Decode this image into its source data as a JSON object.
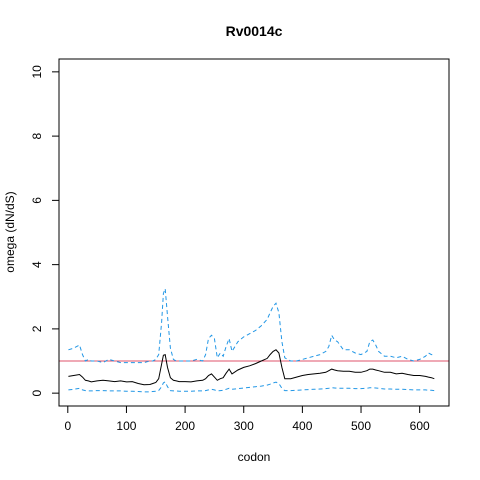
{
  "chart_data": {
    "type": "line",
    "title": "Rv0014c",
    "xlabel": "codon",
    "ylabel": "omega (dN/dS)",
    "xlim": [
      -15,
      650
    ],
    "ylim": [
      -0.4,
      10.4
    ],
    "x_ticks": [
      0,
      100,
      200,
      300,
      400,
      500,
      600
    ],
    "y_ticks": [
      0,
      2,
      4,
      6,
      8,
      10
    ],
    "grid": false,
    "reference_line": {
      "y": 1,
      "color": "#df536b"
    },
    "colors": {
      "mean": "#000000",
      "bounds": "#2297e6",
      "reference": "#df536b"
    },
    "series": [
      {
        "role": "upper",
        "style": "dashed",
        "x": [
          1,
          10,
          20,
          25,
          30,
          35,
          40,
          50,
          60,
          70,
          80,
          90,
          100,
          110,
          120,
          130,
          140,
          145,
          150,
          155,
          160,
          163,
          166,
          170,
          175,
          180,
          185,
          190,
          200,
          210,
          220,
          230,
          235,
          240,
          245,
          250,
          255,
          260,
          265,
          270,
          275,
          280,
          290,
          300,
          310,
          320,
          330,
          340,
          345,
          350,
          355,
          360,
          365,
          370,
          380,
          390,
          400,
          410,
          420,
          430,
          440,
          445,
          450,
          455,
          460,
          470,
          480,
          490,
          500,
          510,
          515,
          520,
          525,
          530,
          540,
          550,
          560,
          570,
          580,
          590,
          600,
          610,
          615,
          620,
          625
        ],
        "y": [
          1.35,
          1.4,
          1.5,
          1.2,
          1.0,
          1.05,
          1.0,
          1.0,
          0.95,
          1.05,
          1.0,
          0.95,
          0.95,
          0.95,
          0.95,
          0.95,
          1.0,
          1.0,
          1.05,
          1.2,
          2.2,
          3.1,
          3.25,
          2.4,
          1.4,
          1.05,
          1.0,
          1.0,
          1.0,
          1.0,
          1.05,
          1.0,
          1.2,
          1.7,
          1.8,
          1.7,
          1.1,
          1.25,
          1.15,
          1.45,
          1.7,
          1.3,
          1.6,
          1.75,
          1.85,
          1.95,
          2.1,
          2.3,
          2.5,
          2.7,
          2.8,
          2.5,
          1.6,
          1.1,
          1.0,
          1.0,
          1.05,
          1.1,
          1.15,
          1.2,
          1.3,
          1.45,
          1.8,
          1.65,
          1.6,
          1.35,
          1.35,
          1.25,
          1.2,
          1.3,
          1.6,
          1.65,
          1.5,
          1.3,
          1.15,
          1.15,
          1.1,
          1.15,
          1.05,
          1.0,
          1.05,
          1.15,
          1.25,
          1.2,
          1.2
        ]
      },
      {
        "role": "mean",
        "style": "solid",
        "x": [
          1,
          10,
          20,
          25,
          30,
          35,
          40,
          50,
          60,
          70,
          80,
          90,
          100,
          110,
          120,
          130,
          140,
          145,
          150,
          155,
          160,
          163,
          166,
          170,
          175,
          180,
          185,
          190,
          200,
          210,
          220,
          230,
          235,
          240,
          245,
          250,
          255,
          260,
          265,
          270,
          275,
          280,
          290,
          300,
          310,
          320,
          330,
          340,
          345,
          350,
          355,
          360,
          365,
          370,
          380,
          390,
          400,
          410,
          420,
          430,
          440,
          445,
          450,
          455,
          460,
          470,
          480,
          490,
          500,
          510,
          515,
          520,
          525,
          530,
          540,
          550,
          560,
          570,
          580,
          590,
          600,
          610,
          615,
          620,
          625
        ],
        "y": [
          0.52,
          0.55,
          0.58,
          0.5,
          0.4,
          0.38,
          0.35,
          0.38,
          0.4,
          0.38,
          0.36,
          0.38,
          0.35,
          0.36,
          0.3,
          0.26,
          0.27,
          0.3,
          0.33,
          0.45,
          0.9,
          1.18,
          1.2,
          0.8,
          0.48,
          0.4,
          0.38,
          0.36,
          0.36,
          0.35,
          0.38,
          0.4,
          0.45,
          0.55,
          0.6,
          0.5,
          0.4,
          0.45,
          0.48,
          0.62,
          0.75,
          0.6,
          0.72,
          0.8,
          0.85,
          0.92,
          1.0,
          1.08,
          1.2,
          1.3,
          1.35,
          1.25,
          0.8,
          0.45,
          0.45,
          0.5,
          0.55,
          0.58,
          0.6,
          0.62,
          0.65,
          0.7,
          0.75,
          0.72,
          0.7,
          0.68,
          0.68,
          0.65,
          0.65,
          0.7,
          0.75,
          0.75,
          0.72,
          0.7,
          0.65,
          0.65,
          0.6,
          0.62,
          0.58,
          0.55,
          0.55,
          0.52,
          0.5,
          0.48,
          0.45
        ]
      },
      {
        "role": "lower",
        "style": "dashed",
        "x": [
          1,
          10,
          20,
          25,
          30,
          35,
          40,
          50,
          60,
          70,
          80,
          90,
          100,
          110,
          120,
          130,
          140,
          145,
          150,
          155,
          160,
          163,
          166,
          170,
          175,
          180,
          185,
          190,
          200,
          210,
          220,
          230,
          235,
          240,
          245,
          250,
          255,
          260,
          265,
          270,
          275,
          280,
          290,
          300,
          310,
          320,
          330,
          340,
          345,
          350,
          355,
          360,
          365,
          370,
          380,
          390,
          400,
          410,
          420,
          430,
          440,
          445,
          450,
          455,
          460,
          470,
          480,
          490,
          500,
          510,
          515,
          520,
          525,
          530,
          540,
          550,
          560,
          570,
          580,
          590,
          600,
          610,
          615,
          620,
          625
        ],
        "y": [
          0.1,
          0.12,
          0.15,
          0.1,
          0.08,
          0.07,
          0.07,
          0.08,
          0.08,
          0.07,
          0.07,
          0.07,
          0.06,
          0.06,
          0.05,
          0.04,
          0.04,
          0.05,
          0.06,
          0.08,
          0.2,
          0.32,
          0.35,
          0.2,
          0.08,
          0.07,
          0.07,
          0.06,
          0.06,
          0.06,
          0.07,
          0.07,
          0.08,
          0.1,
          0.12,
          0.1,
          0.07,
          0.08,
          0.09,
          0.12,
          0.15,
          0.12,
          0.14,
          0.16,
          0.18,
          0.2,
          0.22,
          0.25,
          0.28,
          0.32,
          0.34,
          0.3,
          0.15,
          0.08,
          0.08,
          0.09,
          0.1,
          0.11,
          0.12,
          0.13,
          0.14,
          0.15,
          0.17,
          0.16,
          0.15,
          0.15,
          0.15,
          0.14,
          0.14,
          0.15,
          0.17,
          0.17,
          0.16,
          0.15,
          0.13,
          0.13,
          0.12,
          0.12,
          0.11,
          0.1,
          0.1,
          0.1,
          0.09,
          0.09,
          0.08
        ]
      }
    ]
  }
}
